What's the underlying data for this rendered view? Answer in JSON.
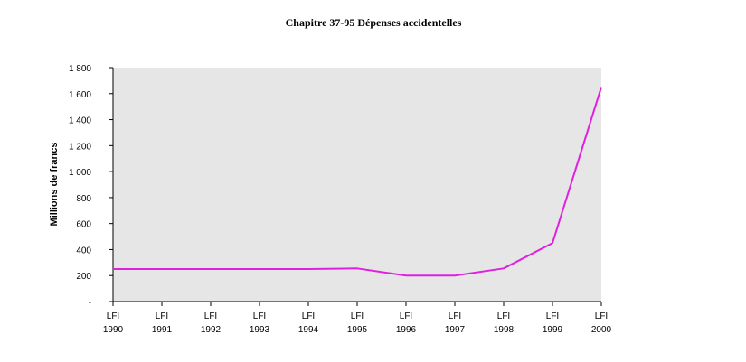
{
  "chart_data": {
    "type": "line",
    "title": "Chapitre 37-95  Dépenses accidentelles",
    "ylabel": "Millions de francs",
    "xlabel": "",
    "categories": [
      [
        "LFI",
        "1990"
      ],
      [
        "LFI",
        "1991"
      ],
      [
        "LFI",
        "1992"
      ],
      [
        "LFI",
        "1993"
      ],
      [
        "LFI",
        "1994"
      ],
      [
        "LFI",
        "1995"
      ],
      [
        "LFI",
        "1996"
      ],
      [
        "LFI",
        "1997"
      ],
      [
        "LFI",
        "1998"
      ],
      [
        "LFI",
        "1999"
      ],
      [
        "LFI",
        "2000"
      ]
    ],
    "series": [
      {
        "values": [
          250,
          250,
          250,
          250,
          250,
          255,
          200,
          200,
          255,
          450,
          1650
        ],
        "color": "#e020e0"
      }
    ],
    "ylim": [
      0,
      1800
    ],
    "yticks": [
      {
        "value": 0,
        "label": "-"
      },
      {
        "value": 200,
        "label": "200"
      },
      {
        "value": 400,
        "label": "400"
      },
      {
        "value": 600,
        "label": "600"
      },
      {
        "value": 800,
        "label": "800"
      },
      {
        "value": 1000,
        "label": "1 000"
      },
      {
        "value": 1200,
        "label": "1 200"
      },
      {
        "value": 1400,
        "label": "1 400"
      },
      {
        "value": 1600,
        "label": "1 600"
      },
      {
        "value": 1800,
        "label": "1 800"
      }
    ],
    "grid": false,
    "legend": "none",
    "plot_background": "#e6e6e6"
  }
}
